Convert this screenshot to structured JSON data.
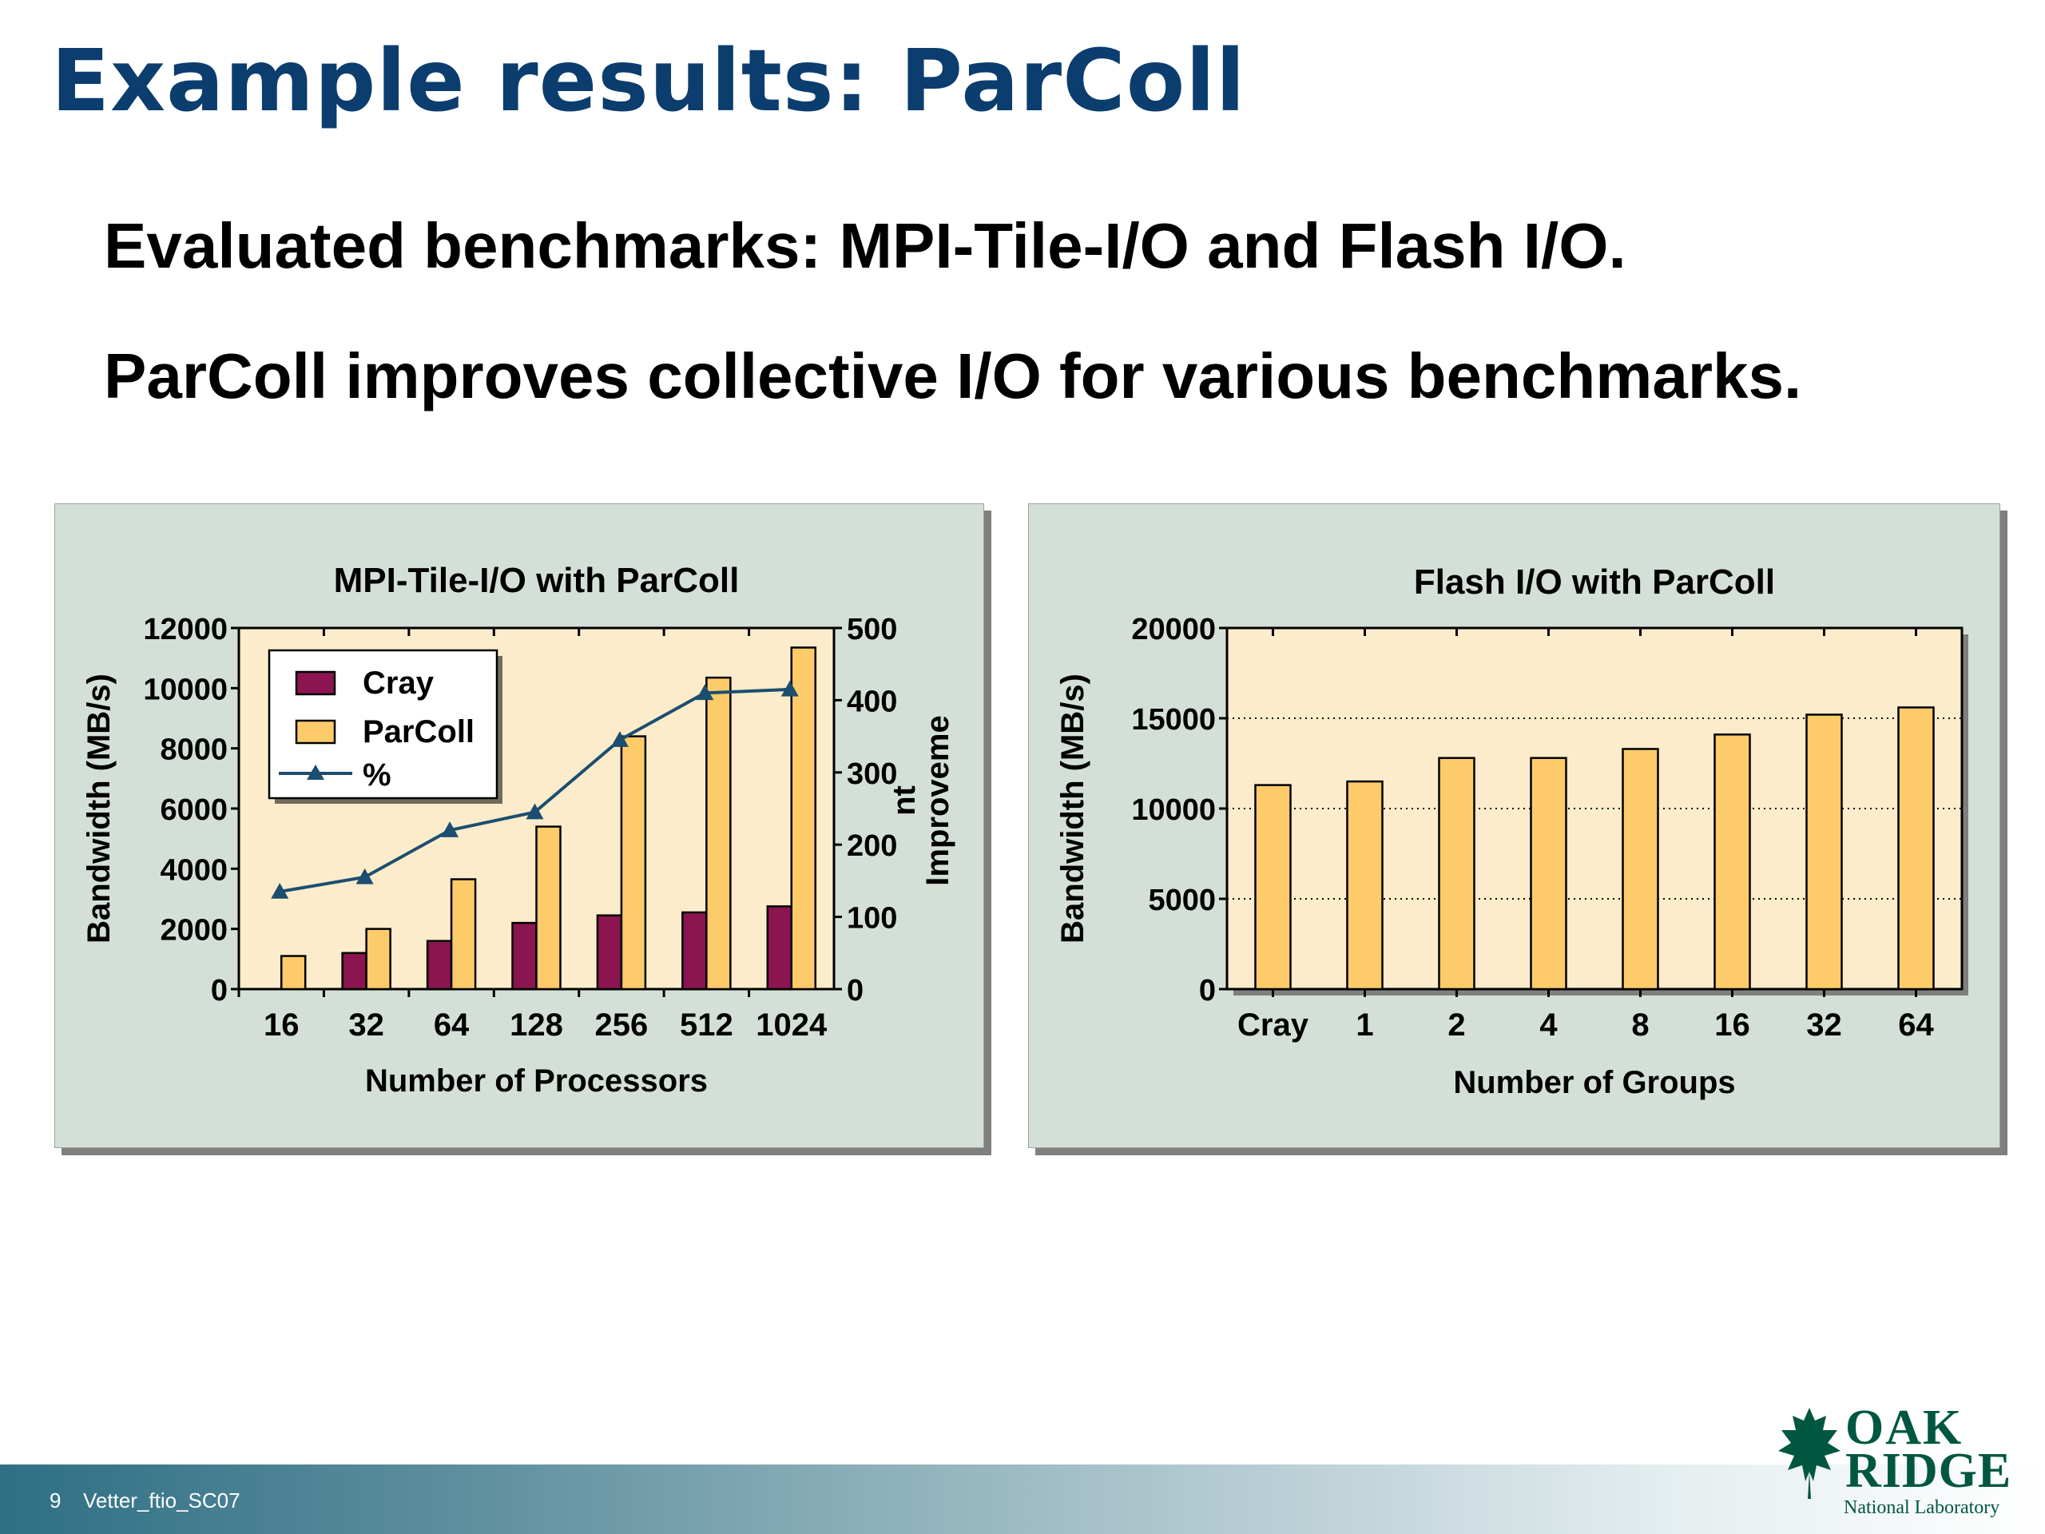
{
  "slide": {
    "title": "Example results: ParColl",
    "bullets": [
      "Evaluated benchmarks: MPI-Tile-I/O and Flash I/O.",
      "ParColl improves collective I/O for various benchmarks."
    ]
  },
  "footer": {
    "page_number": "9",
    "text": "Vetter_ftio_SC07"
  },
  "logo": {
    "line1": "OAK",
    "line2": "RIDGE",
    "line3": "National Laboratory"
  },
  "chart_data": [
    {
      "type": "bar",
      "title": "MPI-Tile-I/O with ParColl",
      "xlabel": "Number of Processors",
      "ylabel": "Bandwidth (MB/s)",
      "y2label": "Improveme nt",
      "categories": [
        "16",
        "32",
        "64",
        "128",
        "256",
        "512",
        "1024"
      ],
      "ylim": [
        0,
        12000
      ],
      "y_ticks": [
        "0",
        "2000",
        "4000",
        "6000",
        "8000",
        "10000",
        "12000"
      ],
      "y2lim": [
        0,
        500
      ],
      "y2_ticks": [
        "0",
        "100",
        "200",
        "300",
        "400",
        "500"
      ],
      "legend_position": "top-left",
      "series": [
        {
          "name": "Cray",
          "type": "bar",
          "axis": "left",
          "color": "#8b1550",
          "values": [
            0,
            1200,
            1600,
            2200,
            2450,
            2550,
            2750
          ]
        },
        {
          "name": "ParColl",
          "type": "bar",
          "axis": "left",
          "color": "#fecb6a",
          "values": [
            1100,
            2000,
            3650,
            5400,
            8400,
            10350,
            11350
          ]
        },
        {
          "name": "%",
          "type": "line",
          "axis": "right",
          "color": "#1b4e70",
          "marker": "triangle",
          "values": [
            135,
            155,
            220,
            245,
            345,
            410,
            415
          ]
        }
      ],
      "grid": false
    },
    {
      "type": "bar",
      "title": "Flash I/O with ParColl",
      "xlabel": "Number of Groups",
      "ylabel": "Bandwidth (MB/s)",
      "categories": [
        "Cray",
        "1",
        "2",
        "4",
        "8",
        "16",
        "32",
        "64"
      ],
      "ylim": [
        0,
        20000
      ],
      "y_ticks": [
        "0",
        "5000",
        "10000",
        "15000",
        "20000"
      ],
      "series": [
        {
          "name": "Bandwidth",
          "type": "bar",
          "color": "#fecb6a",
          "values": [
            11300,
            11500,
            12800,
            12800,
            13300,
            14100,
            15200,
            15600
          ]
        }
      ],
      "grid": true,
      "grid_style": "dotted"
    }
  ]
}
